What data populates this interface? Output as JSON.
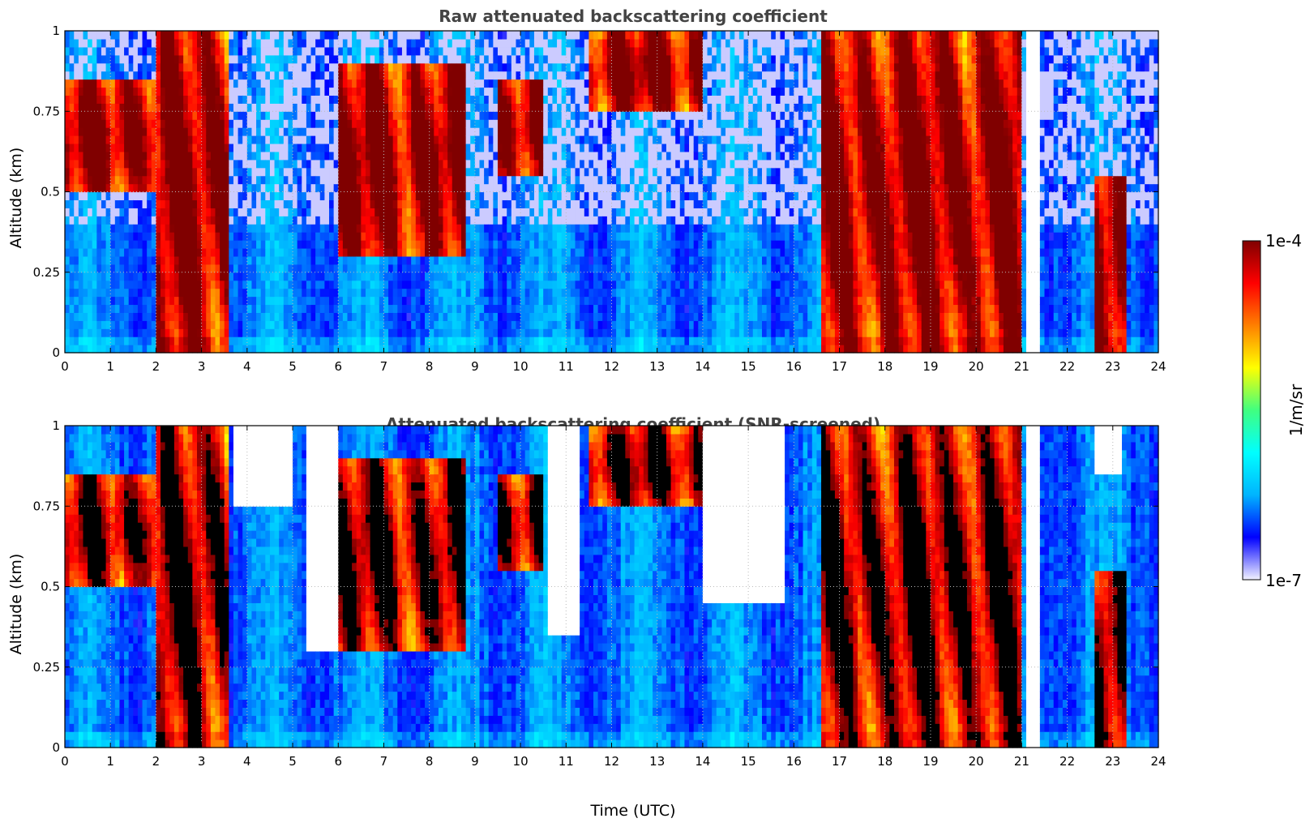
{
  "colors": {
    "colormap": [
      "#f2f2ff",
      "#0000ff",
      "#00b4ff",
      "#00ffff",
      "#40ff80",
      "#ffff00",
      "#ff8000",
      "#ff0000",
      "#800000"
    ],
    "masked": "#ffffff",
    "saturated": "#000000",
    "title_text": "#444444",
    "grid": "#bbbbbb"
  },
  "colorbar": {
    "max_label": "1e-4",
    "min_label": "1e-7",
    "unit_label": "1/m/sr",
    "scale": "log"
  },
  "chart_data": [
    {
      "type": "heatmap",
      "title": "Raw attenuated backscattering coefficient",
      "xlabel": "",
      "ylabel": "Altitude (km)",
      "xlim": [
        0,
        24
      ],
      "ylim": [
        0,
        1
      ],
      "x_ticks": [
        "0",
        "1",
        "2",
        "3",
        "4",
        "5",
        "6",
        "7",
        "8",
        "9",
        "10",
        "11",
        "12",
        "13",
        "14",
        "15",
        "16",
        "17",
        "18",
        "19",
        "20",
        "21",
        "22",
        "23",
        "24"
      ],
      "y_ticks": [
        "0",
        "0.25",
        "0.5",
        "0.75",
        "1"
      ],
      "grid": true,
      "data_gap_hours": [
        21.1,
        21.45
      ],
      "cloud_layers": [
        {
          "start": 0.0,
          "end": 2.0,
          "base_km": 0.5,
          "top_km": 0.85,
          "intensity": "high"
        },
        {
          "start": 2.0,
          "end": 3.6,
          "base_km": 0.0,
          "top_km": 1.0,
          "intensity": "high"
        },
        {
          "start": 6.0,
          "end": 8.8,
          "base_km": 0.3,
          "top_km": 0.9,
          "intensity": "high"
        },
        {
          "start": 9.5,
          "end": 10.5,
          "base_km": 0.55,
          "top_km": 0.85,
          "intensity": "high"
        },
        {
          "start": 11.5,
          "end": 14.0,
          "base_km": 0.75,
          "top_km": 1.0,
          "intensity": "high"
        },
        {
          "start": 16.6,
          "end": 21.0,
          "base_km": 0.0,
          "top_km": 1.0,
          "intensity": "high"
        },
        {
          "start": 22.6,
          "end": 23.3,
          "base_km": 0.0,
          "top_km": 0.55,
          "intensity": "high"
        }
      ]
    },
    {
      "type": "heatmap",
      "title": "Attenuated backscattering coefficient (SNR-screened)",
      "xlabel": "Time (UTC)",
      "ylabel": "Altitude (km)",
      "xlim": [
        0,
        24
      ],
      "ylim": [
        0,
        1
      ],
      "x_ticks": [
        "0",
        "1",
        "2",
        "3",
        "4",
        "5",
        "6",
        "7",
        "8",
        "9",
        "10",
        "11",
        "12",
        "13",
        "14",
        "15",
        "16",
        "17",
        "18",
        "19",
        "20",
        "21",
        "22",
        "23",
        "24"
      ],
      "y_ticks": [
        "0",
        "0.25",
        "0.5",
        "0.75",
        "1"
      ],
      "grid": true,
      "data_gap_hours": [
        21.1,
        21.45
      ],
      "masked_regions": [
        {
          "start": 3.7,
          "end": 5.0,
          "above_km": 0.75
        },
        {
          "start": 5.3,
          "end": 6.0,
          "above_km": 0.3
        },
        {
          "start": 10.6,
          "end": 11.3,
          "above_km": 0.35
        },
        {
          "start": 14.0,
          "end": 15.8,
          "above_km": 0.45
        },
        {
          "start": 22.6,
          "end": 23.2,
          "above_km": 0.85
        }
      ]
    }
  ]
}
